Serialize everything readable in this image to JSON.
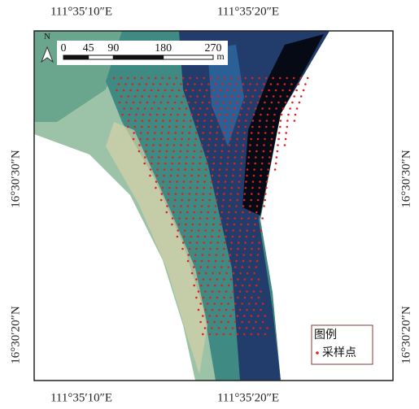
{
  "coordinates": {
    "top": [
      "111°35′10″E",
      "111°35′20″E"
    ],
    "bottom": [
      "111°35′10″E",
      "111°35′20″E"
    ],
    "left": [
      "16°30′30″N",
      "16°30′20″N"
    ],
    "right": [
      "16°30′30″N",
      "16°30′20″N"
    ]
  },
  "north_arrow": "N",
  "scale_bar": {
    "labels": [
      0,
      45,
      90,
      180,
      270
    ],
    "unit": "m"
  },
  "legend": {
    "title": "图例",
    "items": [
      "采样点"
    ]
  }
}
